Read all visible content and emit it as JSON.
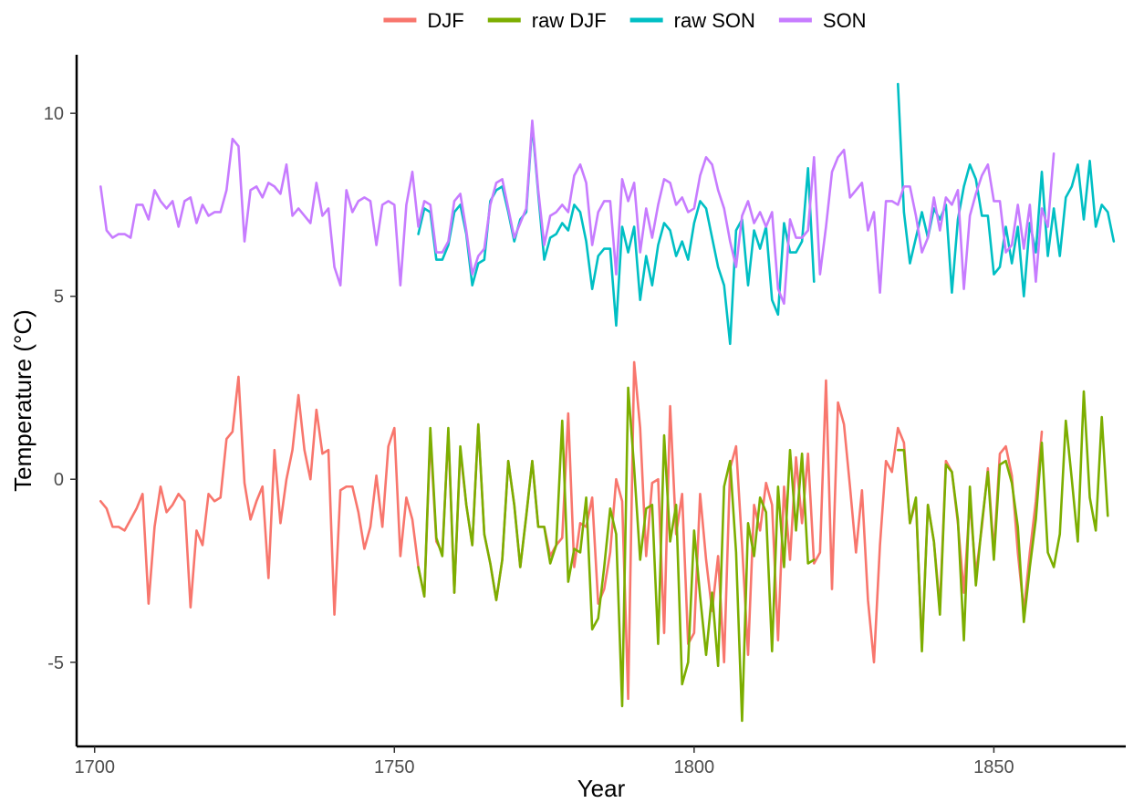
{
  "chart_data": {
    "type": "line",
    "xlabel": "Year",
    "ylabel": "Temperature (°C)",
    "xlim": [
      1697,
      1872
    ],
    "ylim": [
      -7.3,
      11.6
    ],
    "xticks": [
      1700,
      1750,
      1800,
      1850
    ],
    "yticks": [
      -5,
      0,
      5,
      10
    ],
    "grid": false,
    "legend_position": "top",
    "series": [
      {
        "name": "DJF",
        "color": "#F8766D",
        "x_start": 1701,
        "values": [
          -0.6,
          -0.8,
          -1.3,
          -1.3,
          -1.4,
          -1.1,
          -0.8,
          -0.4,
          -3.4,
          -1.3,
          -0.2,
          -0.9,
          -0.7,
          -0.4,
          -0.6,
          -3.5,
          -1.4,
          -1.8,
          -0.4,
          -0.6,
          -0.5,
          1.1,
          1.3,
          2.8,
          -0.1,
          -1.1,
          -0.6,
          -0.2,
          -2.7,
          0.8,
          -1.2,
          0.0,
          0.8,
          2.3,
          0.8,
          0.0,
          1.9,
          0.7,
          0.8,
          -3.7,
          -0.3,
          -0.2,
          -0.2,
          -0.9,
          -1.9,
          -1.3,
          0.1,
          -1.3,
          0.9,
          1.4,
          -2.1,
          -0.5,
          -1.1,
          -2.4,
          -3.2,
          1.2,
          -1.7,
          -2.0,
          1.3,
          -3.1,
          0.8,
          -0.7,
          -1.8,
          1.5,
          -1.5,
          -2.3,
          -3.3,
          -2.2,
          0.5,
          -0.7,
          -2.4,
          -1.0,
          0.5,
          -1.3,
          -1.3,
          -2.1,
          -1.8,
          -1.6,
          1.8,
          -2.4,
          -1.2,
          -1.3,
          -0.5,
          -3.4,
          -3.0,
          -2.0,
          0.0,
          -0.6,
          -6.0,
          3.2,
          1.4,
          -2.1,
          -0.1,
          0.0,
          -4.2,
          2.0,
          -1.5,
          -0.4,
          -4.5,
          -4.2,
          -0.4,
          -2.2,
          -3.6,
          -2.1,
          -5.0,
          0.3,
          0.9,
          -1.8,
          -4.8,
          -0.7,
          -1.4,
          -0.1,
          -0.7,
          -4.4,
          -0.2,
          -2.2,
          0.6,
          -1.2,
          0.7,
          -2.3,
          -2.0,
          2.7,
          -3.0,
          2.1,
          1.5,
          -0.2,
          -2.0,
          -0.3,
          -3.3,
          -5.0,
          -1.8,
          0.5,
          0.2,
          1.4,
          1.0,
          -1.2,
          -0.6,
          -4.6,
          -0.7,
          -1.7,
          -3.5,
          0.5,
          0.2,
          -1.2,
          -3.1,
          -0.6,
          -2.6,
          -1.3,
          0.3,
          -2.0,
          0.7,
          0.9,
          0.1,
          -2.0,
          -3.6,
          -2.0,
          -0.6,
          1.3
        ],
        "segments": []
      },
      {
        "name": "raw DJF",
        "color": "#7CAE00",
        "x_start": 1754,
        "values": [
          -2.4,
          -3.2,
          1.4,
          -1.6,
          -2.1,
          1.4,
          -3.1,
          0.9,
          -0.7,
          -1.8,
          1.5,
          -1.5,
          -2.3,
          -3.3,
          -2.2,
          0.5,
          -0.7,
          -2.4,
          -1.0,
          0.5,
          -1.3,
          -1.3,
          -2.3,
          -1.8,
          1.6,
          -2.8,
          -1.9,
          -2.0,
          -0.5,
          -4.1,
          -3.8,
          -2.4,
          -0.8,
          -1.5,
          -6.2,
          2.5,
          0.3,
          -2.2,
          -0.8,
          -0.7,
          -4.5,
          1.2,
          -1.7,
          -0.7,
          -5.6,
          -5.0,
          -1.4,
          -3.2,
          -4.8,
          -3.1,
          -5.1,
          -0.2,
          0.5,
          -2.0,
          -6.6,
          -1.2,
          -2.1,
          -0.5,
          -0.9,
          -4.7,
          -0.2,
          -2.4,
          0.8,
          -1.4,
          0.7,
          -2.3,
          -2.2
        ],
        "segments": [
          {
            "x_start": 1834,
            "values": [
              0.8,
              0.8,
              -1.2,
              -0.5,
              -4.7,
              -0.7,
              -1.7,
              -3.7,
              0.4,
              0.2,
              -1.1,
              -4.4,
              -0.2,
              -2.9,
              -1.2,
              0.2,
              -2.2,
              0.4,
              0.5,
              -0.1,
              -1.3,
              -3.9,
              -2.4,
              -1.1,
              1.0,
              -2.0,
              -2.4,
              -1.5,
              1.6,
              0.0,
              -1.7,
              2.4,
              -0.5,
              -1.4,
              1.7,
              -1.0
            ]
          }
        ]
      },
      {
        "name": "raw SON",
        "color": "#00BFC4",
        "x_start": 1754,
        "values": [
          6.7,
          7.4,
          7.3,
          6.0,
          6.0,
          6.4,
          7.3,
          7.5,
          6.7,
          5.3,
          5.9,
          6.0,
          7.6,
          7.9,
          8.0,
          7.3,
          6.5,
          7.1,
          7.3,
          9.7,
          7.8,
          6.0,
          6.6,
          6.7,
          7.0,
          6.8,
          7.5,
          7.3,
          6.5,
          5.2,
          6.1,
          6.3,
          6.3,
          4.2,
          6.9,
          6.2,
          6.9,
          4.9,
          6.1,
          5.3,
          6.4,
          7.0,
          6.8,
          6.1,
          6.5,
          6.0,
          7.0,
          7.6,
          7.4,
          6.6,
          5.8,
          5.3,
          3.7,
          6.8,
          7.1,
          5.3,
          6.8,
          6.3,
          6.9,
          4.9,
          4.5,
          7.0,
          6.2,
          6.2,
          6.5,
          8.5,
          5.4
        ],
        "segments": [
          {
            "x_start": 1834,
            "values": [
              10.8,
              7.3,
              5.9,
              6.6,
              7.3,
              6.6,
              7.4,
              7.1,
              7.5,
              5.1,
              7.1,
              8.0,
              8.6,
              8.2,
              7.2,
              7.2,
              5.6,
              5.8,
              6.9,
              5.9,
              6.9,
              5.0,
              7.0,
              6.2,
              8.4,
              6.1,
              7.4,
              6.1,
              7.7,
              8.0,
              8.6,
              7.1,
              8.7,
              6.9,
              7.5,
              7.3,
              6.5
            ]
          }
        ]
      },
      {
        "name": "SON",
        "color": "#C77CFF",
        "x_start": 1701,
        "values": [
          8.0,
          6.8,
          6.6,
          6.7,
          6.7,
          6.6,
          7.5,
          7.5,
          7.1,
          7.9,
          7.6,
          7.4,
          7.6,
          6.9,
          7.6,
          7.7,
          7.0,
          7.5,
          7.2,
          7.3,
          7.3,
          7.9,
          9.3,
          9.1,
          6.5,
          7.9,
          8.0,
          7.7,
          8.1,
          8.0,
          7.8,
          8.6,
          7.2,
          7.4,
          7.2,
          7.0,
          8.1,
          7.2,
          7.4,
          5.8,
          5.3,
          7.9,
          7.3,
          7.6,
          7.7,
          7.6,
          6.4,
          7.5,
          7.6,
          7.5,
          5.3,
          7.5,
          8.4,
          6.9,
          7.6,
          7.5,
          6.2,
          6.2,
          6.5,
          7.6,
          7.8,
          6.8,
          5.6,
          6.1,
          6.3,
          7.5,
          8.1,
          8.2,
          7.4,
          6.6,
          7.0,
          7.4,
          9.8,
          7.9,
          6.4,
          7.2,
          7.3,
          7.5,
          7.3,
          8.3,
          8.6,
          8.1,
          6.4,
          7.3,
          7.6,
          7.6,
          5.6,
          8.2,
          7.6,
          8.1,
          6.2,
          7.4,
          6.6,
          7.5,
          8.2,
          8.1,
          7.5,
          7.7,
          7.3,
          7.4,
          8.3,
          8.8,
          8.6,
          7.9,
          7.4,
          6.5,
          5.8,
          7.2,
          7.6,
          7.0,
          7.3,
          6.9,
          7.3,
          5.2,
          4.8,
          7.1,
          6.6,
          6.6,
          6.8,
          8.8,
          5.6,
          6.9,
          8.4,
          8.8,
          9.0,
          7.7,
          7.9,
          8.1,
          6.8,
          7.3,
          5.1,
          7.6,
          7.6,
          7.5,
          8.0,
          8.0,
          7.2,
          6.2,
          6.6,
          7.7,
          6.8,
          7.7,
          7.5,
          7.9,
          5.2,
          7.2,
          7.8,
          8.3,
          8.6,
          7.6,
          7.6,
          6.2,
          6.4,
          7.5,
          6.3,
          7.5,
          5.4,
          7.4,
          6.9,
          8.9
        ],
        "segments": []
      }
    ]
  }
}
